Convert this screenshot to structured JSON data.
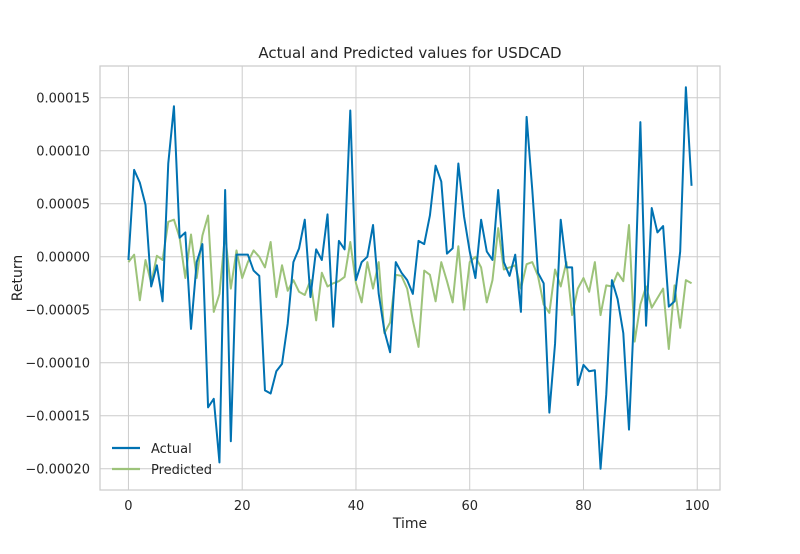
{
  "chart_data": {
    "type": "line",
    "title": "Actual and Predicted values for USDCAD",
    "xlabel": "Time",
    "ylabel": "Return",
    "xlim": [
      -5,
      104
    ],
    "ylim": [
      -0.00022,
      0.00018
    ],
    "xticks": [
      0,
      20,
      40,
      60,
      80,
      100
    ],
    "xtick_labels": [
      "0",
      "20",
      "40",
      "60",
      "80",
      "100"
    ],
    "yticks": [
      -0.0002,
      -0.00015,
      -0.0001,
      -5e-05,
      0,
      5e-05,
      0.0001,
      0.00015
    ],
    "ytick_labels": [
      "−0.00020",
      "−0.00015",
      "−0.00010",
      "−0.00005",
      "0.00000",
      "0.00005",
      "0.00010",
      "0.00015"
    ],
    "grid": true,
    "legend_position": "lower-left",
    "colors": {
      "Actual": "#0072b2",
      "Predicted": "#9dc37a",
      "grid": "#cccccc",
      "frame": "#cccccc"
    },
    "series": [
      {
        "name": "Actual",
        "values": [
          -3e-06,
          8.2e-05,
          7e-05,
          4.9e-05,
          -2.8e-05,
          -8e-06,
          -4.2e-05,
          8.8e-05,
          0.000142,
          1.8e-05,
          2.3e-05,
          -6.8e-05,
          -5e-06,
          1.2e-05,
          -0.000142,
          -0.000134,
          -0.000194,
          6.3e-05,
          -0.000174,
          2e-06,
          2e-06,
          2e-06,
          -1.3e-05,
          -1.8e-05,
          -0.000126,
          -0.000129,
          -0.000108,
          -0.000101,
          -6.3e-05,
          -5e-06,
          8e-06,
          3.5e-05,
          -3.8e-05,
          7e-06,
          -3e-06,
          4e-05,
          -6.6e-05,
          1.5e-05,
          7e-06,
          0.000138,
          -2.2e-05,
          -5e-06,
          0.0,
          3e-05,
          -3.5e-05,
          -7e-05,
          -9e-05,
          -5e-06,
          -1.5e-05,
          -2.2e-05,
          -3.5e-05,
          1.5e-05,
          1.2e-05,
          3.9e-05,
          8.6e-05,
          7.1e-05,
          3e-06,
          8e-06,
          8.8e-05,
          3.8e-05,
          5e-06,
          -2e-05,
          3.5e-05,
          5e-06,
          -3e-06,
          6.3e-05,
          -5e-06,
          -1.8e-05,
          2e-06,
          -5.2e-05,
          0.000132,
          6.3e-05,
          -1.5e-05,
          -2.5e-05,
          -0.000147,
          -8.2e-05,
          3.5e-05,
          -1e-05,
          -1e-05,
          -0.000121,
          -0.000102,
          -0.000108,
          -0.000107,
          -0.0002,
          -0.00013,
          -2.2e-05,
          -4e-05,
          -7.2e-05,
          -0.000163,
          -4e-05,
          0.000127,
          -6.5e-05,
          4.6e-05,
          2.3e-05,
          2.9e-05,
          -4.7e-05,
          -4.2e-05,
          5e-06,
          0.00016,
          6.7e-05
        ]
      },
      {
        "name": "Predicted",
        "values": [
          -5e-06,
          2e-06,
          -4.1e-05,
          -3e-06,
          -2.5e-05,
          1e-06,
          -3e-06,
          3.3e-05,
          3.5e-05,
          1.8e-05,
          -2e-05,
          2.1e-05,
          -2e-05,
          2e-05,
          3.9e-05,
          -5.2e-05,
          -3.5e-05,
          2.2e-05,
          -3e-05,
          6e-06,
          -2e-05,
          -5e-06,
          6e-06,
          0.0,
          -1e-05,
          1.4e-05,
          -3.8e-05,
          -8e-06,
          -3.2e-05,
          -2.2e-05,
          -3.3e-05,
          -3.6e-05,
          -2.2e-05,
          -6e-05,
          -1.5e-05,
          -2.8e-05,
          -2.5e-05,
          -2.3e-05,
          -1.9e-05,
          1.4e-05,
          -2.5e-05,
          -4.3e-05,
          -5e-06,
          -3e-05,
          -5e-06,
          -7.2e-05,
          -6.2e-05,
          -1.7e-05,
          -1.8e-05,
          -3e-05,
          -6e-05,
          -8.5e-05,
          -1.3e-05,
          -1.7e-05,
          -4.2e-05,
          -5e-06,
          -2.3e-05,
          -4.3e-05,
          1e-05,
          -5e-05,
          -5e-06,
          0.0,
          -1e-05,
          -4.3e-05,
          -2.2e-05,
          2.7e-05,
          -1.2e-05,
          -1e-05,
          -8e-06,
          -3e-05,
          -7e-06,
          -5e-06,
          -1.8e-05,
          -4.5e-05,
          -5.3e-05,
          -1.2e-05,
          -2.8e-05,
          -5e-06,
          -5.5e-05,
          -3e-05,
          -2e-05,
          -3.3e-05,
          -5e-06,
          -5.5e-05,
          -2.7e-05,
          -2.8e-05,
          -1.5e-05,
          -2.3e-05,
          3e-05,
          -8e-05,
          -4.5e-05,
          -2.8e-05,
          -4.8e-05,
          -3.9e-05,
          -3e-05,
          -8.7e-05,
          -2.7e-05,
          -6.7e-05,
          -2.2e-05,
          -2.5e-05
        ]
      }
    ]
  }
}
